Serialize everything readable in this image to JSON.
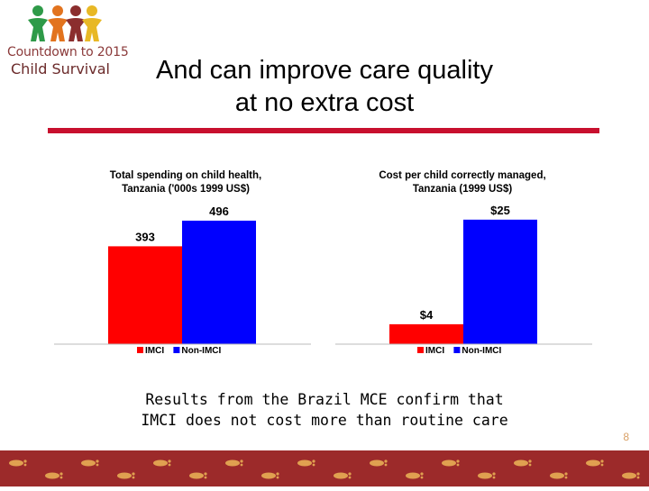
{
  "logo": {
    "line1": "Countdown to 2015",
    "line2": "Child Survival",
    "figure_colors": [
      "#2e9a48",
      "#e2731e",
      "#8b2e2e",
      "#e8b825"
    ]
  },
  "slide": {
    "title_line1": "And can improve care quality",
    "title_line2": "at no extra cost",
    "caption_line1": "Results from the Brazil MCE confirm that",
    "caption_line2": "IMCI does not cost more than routine care",
    "page_number": "8"
  },
  "colors": {
    "imci": "#ff0000",
    "non_imci": "#0000ff",
    "rule": "#c8102e",
    "footer": "#9c2a2a"
  },
  "chart_data": [
    {
      "type": "bar",
      "title": "Total spending on child health, Tanzania ('000s 1999 US$)",
      "title_lines": [
        "Total spending on child health,",
        "Tanzania ('000s 1999 US$)"
      ],
      "categories": [
        "IMCI",
        "Non-IMCI"
      ],
      "values": [
        393,
        496
      ],
      "data_labels": [
        "393",
        "496"
      ],
      "ylim": [
        0,
        550
      ],
      "legend": [
        "IMCI",
        "Non-IMCI"
      ],
      "legend_position": "bottom",
      "grid": false
    },
    {
      "type": "bar",
      "title": "Cost per child correctly managed, Tanzania (1999 US$)",
      "title_lines": [
        "Cost per child correctly managed,",
        "Tanzania (1999 US$)"
      ],
      "categories": [
        "IMCI",
        "Non-IMCI"
      ],
      "values": [
        4,
        25
      ],
      "data_labels": [
        "$4",
        "$25"
      ],
      "ylim": [
        0,
        27.5
      ],
      "legend": [
        "IMCI",
        "Non-IMCI"
      ],
      "legend_position": "bottom",
      "grid": false
    }
  ]
}
